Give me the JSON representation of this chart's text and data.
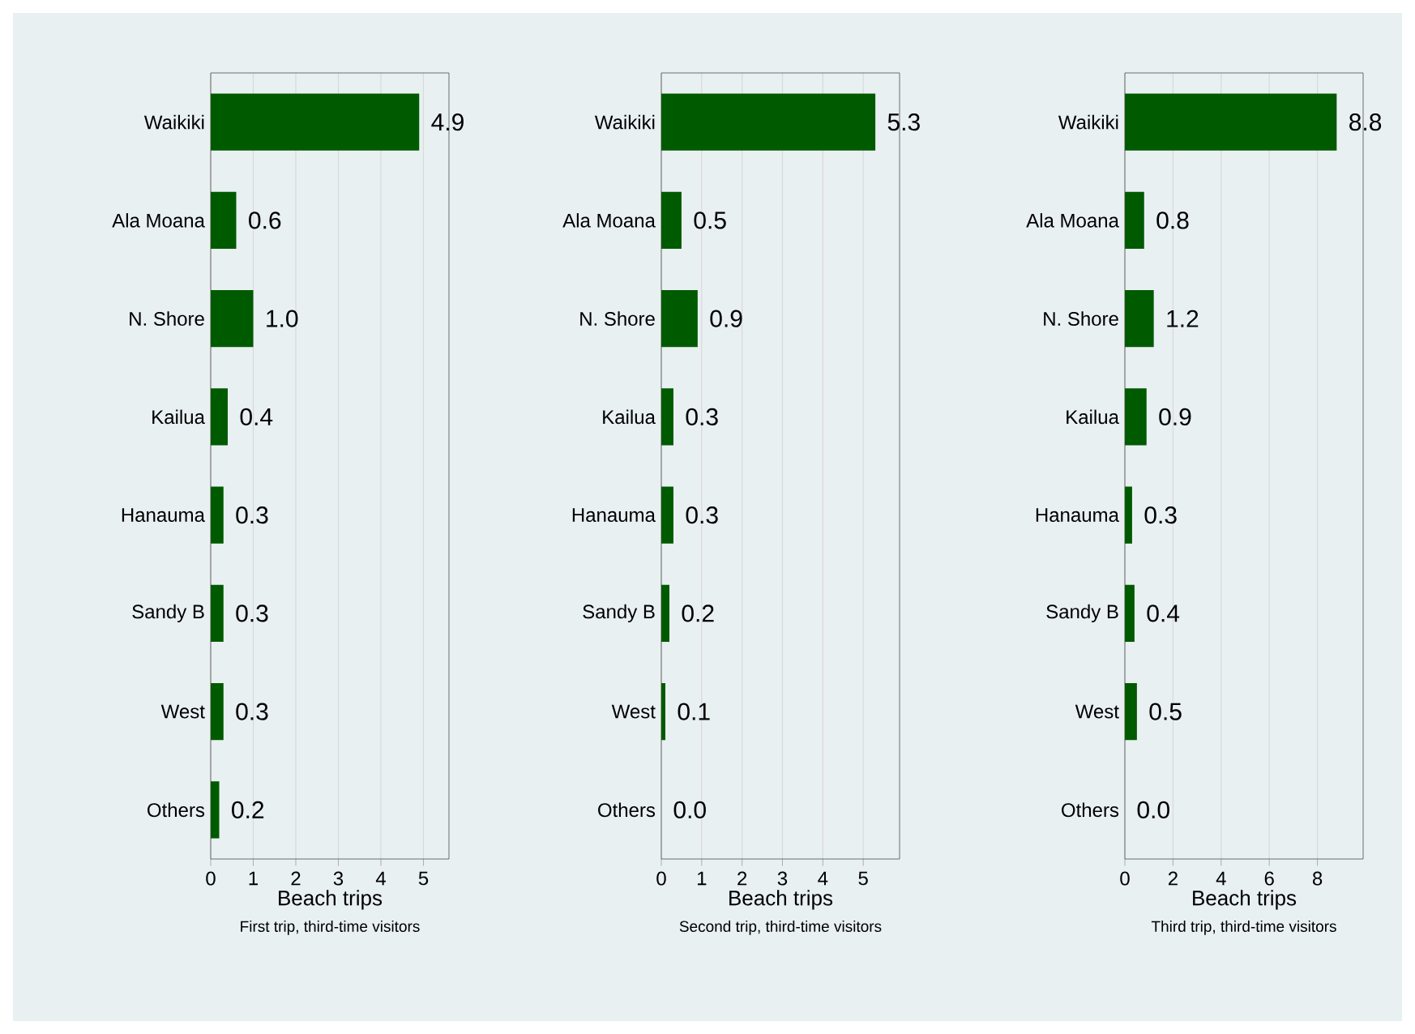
{
  "chart_data": [
    {
      "type": "bar",
      "orientation": "horizontal",
      "categories": [
        "Waikiki",
        "Ala Moana",
        "N. Shore",
        "Kailua",
        "Hanauma",
        "Sandy B",
        "West",
        "Others"
      ],
      "values": [
        4.9,
        0.6,
        1.0,
        0.4,
        0.3,
        0.3,
        0.3,
        0.2
      ],
      "value_labels": [
        "4.9",
        "0.6",
        "1.0",
        "0.4",
        "0.3",
        "0.3",
        "0.3",
        "0.2"
      ],
      "color": "#005a00",
      "xlabel": "Beach trips",
      "annotations": [
        "First trip, third-time visitors"
      ],
      "xlim": [
        0,
        5.6
      ],
      "xticks": [
        0,
        1,
        2,
        3,
        4,
        5
      ],
      "grid": "x"
    },
    {
      "type": "bar",
      "orientation": "horizontal",
      "categories": [
        "Waikiki",
        "Ala Moana",
        "N. Shore",
        "Kailua",
        "Hanauma",
        "Sandy B",
        "West",
        "Others"
      ],
      "values": [
        5.3,
        0.5,
        0.9,
        0.3,
        0.3,
        0.2,
        0.1,
        0.0
      ],
      "value_labels": [
        "5.3",
        "0.5",
        "0.9",
        "0.3",
        "0.3",
        "0.2",
        "0.1",
        "0.0"
      ],
      "color": "#005a00",
      "xlabel": "Beach trips",
      "annotations": [
        "Second trip, third-time visitors"
      ],
      "xlim": [
        0,
        5.9
      ],
      "xticks": [
        0,
        1,
        2,
        3,
        4,
        5
      ],
      "grid": "x"
    },
    {
      "type": "bar",
      "orientation": "horizontal",
      "categories": [
        "Waikiki",
        "Ala Moana",
        "N. Shore",
        "Kailua",
        "Hanauma",
        "Sandy B",
        "West",
        "Others"
      ],
      "values": [
        8.8,
        0.8,
        1.2,
        0.9,
        0.3,
        0.4,
        0.5,
        0.0
      ],
      "value_labels": [
        "8.8",
        "0.8",
        "1.2",
        "0.9",
        "0.3",
        "0.4",
        "0.5",
        "0.0"
      ],
      "color": "#005a00",
      "xlabel": "Beach trips",
      "annotations": [
        "Third trip, third-time visitors"
      ],
      "xlim": [
        0,
        9.9
      ],
      "xticks": [
        0,
        2,
        4,
        6,
        8
      ],
      "grid": "x"
    }
  ]
}
